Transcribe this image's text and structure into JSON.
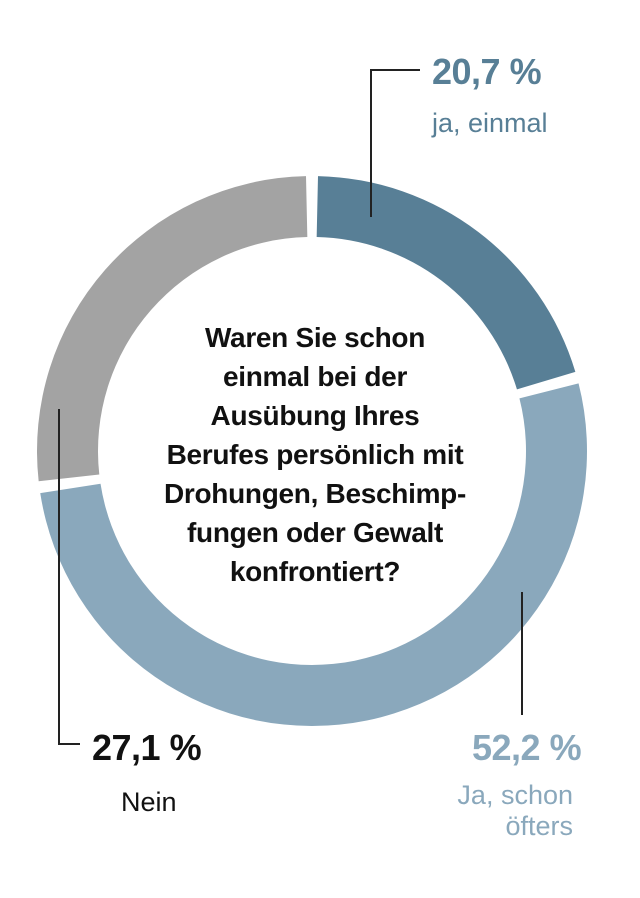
{
  "question": "Waren Sie schon\neinmal bei der\nAusübung Ihres\nBerufes persönlich mit\nDrohungen, Beschimp-\nfungen oder Gewalt\nkonfrontiert?",
  "chart_data": {
    "type": "pie",
    "style": "donut",
    "slices": [
      {
        "label": "ja, einmal",
        "value": 20.7,
        "value_label": "20,7 %",
        "color": "#587f96",
        "label_color": "#587f96"
      },
      {
        "label": "Ja, schon\nöfters",
        "value": 52.2,
        "value_label": "52,2 %",
        "color": "#8aa8bc",
        "label_color": "#8aa8bc"
      },
      {
        "label": "Nein",
        "value": 27.1,
        "value_label": "27,1 %",
        "color": "#a3a3a3",
        "label_color": "#111111"
      }
    ],
    "leader_line_color": "#222222"
  }
}
